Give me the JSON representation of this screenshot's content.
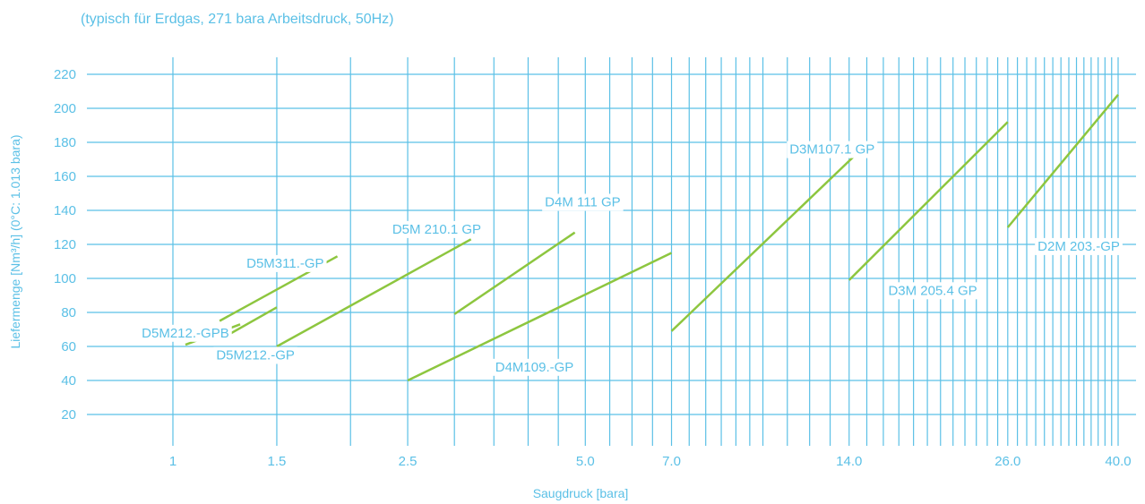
{
  "chart_data": {
    "type": "line",
    "title": "",
    "subtitle": "(typisch für Erdgas, 271 bara Arbeitsdruck, 50Hz)",
    "xlabel": "Saugdruck [bara]",
    "ylabel": "Liefermenge [Nm³/h] (0°C: 1.013 bara)",
    "xscale": "log",
    "xlim": [
      0.6,
      40.5
    ],
    "ylim": [
      0,
      230
    ],
    "x_ticks": [
      1,
      1.5,
      2.5,
      5.0,
      7.0,
      14.0,
      26.0,
      40.0
    ],
    "x_tick_labels": [
      "1",
      "1.5",
      "2.5",
      "5.0",
      "7.0",
      "14.0",
      "26.0",
      "40.0"
    ],
    "y_ticks": [
      20,
      40,
      60,
      80,
      100,
      120,
      140,
      160,
      180,
      200,
      220
    ],
    "y_tick_labels": [
      "20",
      "40",
      "60",
      "80",
      "100",
      "120",
      "140",
      "160",
      "180",
      "200",
      "220"
    ],
    "grid": true,
    "series": [
      {
        "name": "D5M212.-GPB",
        "x": [
          1.05,
          1.3
        ],
        "y": [
          61,
          73
        ]
      },
      {
        "name": "D5M212.-GP",
        "x": [
          1.2,
          1.5
        ],
        "y": [
          64,
          83
        ]
      },
      {
        "name": "D5M311.-GP",
        "x": [
          1.2,
          1.9
        ],
        "y": [
          75,
          113
        ]
      },
      {
        "name": "D5M 210.1 GP",
        "x": [
          1.5,
          3.2
        ],
        "y": [
          60,
          123
        ]
      },
      {
        "name": "D4M 111 GP",
        "x": [
          3.0,
          4.8
        ],
        "y": [
          79,
          127
        ]
      },
      {
        "name": "D4M109.-GP",
        "x": [
          2.5,
          7.0
        ],
        "y": [
          40,
          115
        ]
      },
      {
        "name": "D3M107.1 GP",
        "x": [
          7.0,
          15.0
        ],
        "y": [
          69,
          179
        ]
      },
      {
        "name": "D3M 205.4 GP",
        "x": [
          14.0,
          26.0
        ],
        "y": [
          99,
          192
        ]
      },
      {
        "name": "D2M 203.-GP",
        "x": [
          26.0,
          40.0
        ],
        "y": [
          130,
          208
        ]
      }
    ],
    "colors": {
      "grid": "#5bc0e6",
      "text": "#5bc0e6",
      "series": "#8dc63f",
      "label_bg": "#ffffff"
    }
  }
}
